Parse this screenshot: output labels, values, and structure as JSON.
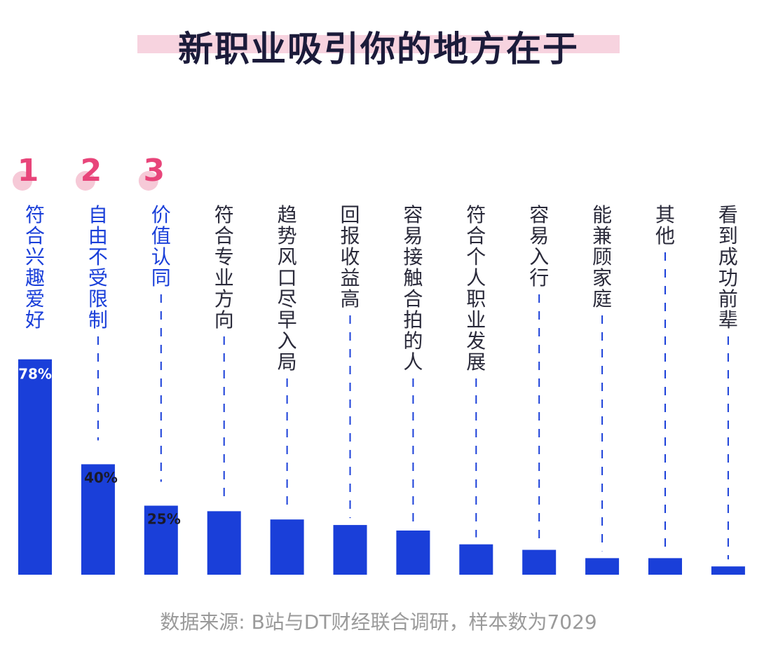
{
  "chart_data": {
    "type": "bar",
    "title": "新职业吸引你的地方在于",
    "categories": [
      "符合兴趣爱好",
      "自由不受限制",
      "价值认同",
      "符合专业方向",
      "趋势风口尽早入局",
      "回报收益高",
      "容易接触合拍的人",
      "符合个人职业发展",
      "容易入行",
      "能兼顾家庭",
      "其他",
      "看到成功前辈"
    ],
    "values": [
      78,
      40,
      25,
      23,
      20,
      18,
      16,
      11,
      9,
      6,
      6,
      3
    ],
    "value_labels": [
      "78%",
      "40%",
      "25%",
      "",
      "",
      "",
      "",
      "",
      "",
      "",
      "",
      ""
    ],
    "rank_labels": [
      "1",
      "2",
      "3"
    ],
    "ylim": [
      0,
      100
    ],
    "grid": false,
    "xlabel": "",
    "ylabel": ""
  },
  "source_note": "数据来源: B站与DT财经联合调研，样本数为7029",
  "colors": {
    "bar": "#1a3fd9",
    "label_highlight": "#1a3fd9",
    "label_normal": "#2a2a3a",
    "rank": "#e8457a",
    "rank_dot": "#f6c9d7",
    "title_band": "#f7d3df",
    "dash": "#1a3fd9"
  }
}
